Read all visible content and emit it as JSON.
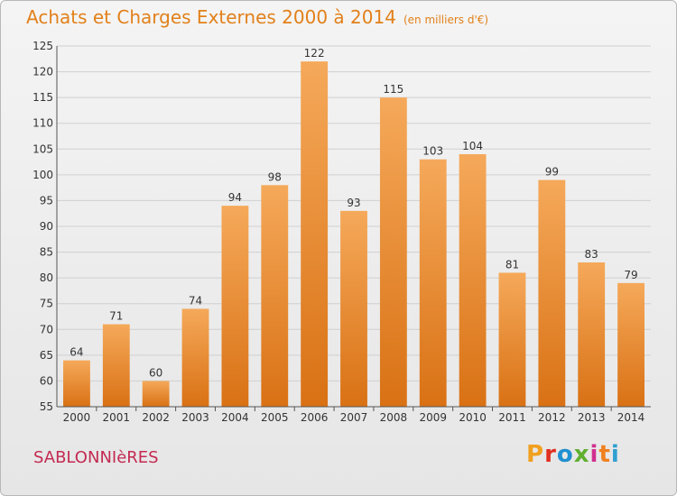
{
  "header": {
    "title": "Achats et Charges Externes 2000 à 2014",
    "subtitle": "(en milliers d'€)"
  },
  "footer": {
    "town": "SABLONNIèRES",
    "brand": "Proxiti",
    "brand_colors": [
      "#f0a020",
      "#e03020",
      "#2090d0",
      "#60b030",
      "#d03090",
      "#f08020",
      "#30a0d0"
    ]
  },
  "colors": {
    "accent": "#e2801a",
    "town": "#c42a52",
    "bar_top": "#f5a95a",
    "bar_bottom": "#d97114",
    "grid": "#d0d0d0",
    "axis": "#555555"
  },
  "chart_data": {
    "type": "bar",
    "categories": [
      "2000",
      "2001",
      "2002",
      "2003",
      "2004",
      "2005",
      "2006",
      "2007",
      "2008",
      "2009",
      "2010",
      "2011",
      "2012",
      "2013",
      "2014"
    ],
    "values": [
      64,
      71,
      60,
      74,
      94,
      98,
      122,
      93,
      115,
      103,
      104,
      81,
      99,
      83,
      79
    ],
    "ylim": [
      55,
      125
    ],
    "yticks": [
      55,
      60,
      65,
      70,
      75,
      80,
      85,
      90,
      95,
      100,
      105,
      110,
      115,
      120,
      125
    ],
    "grid": true,
    "data_labels": true,
    "legend": "none"
  }
}
